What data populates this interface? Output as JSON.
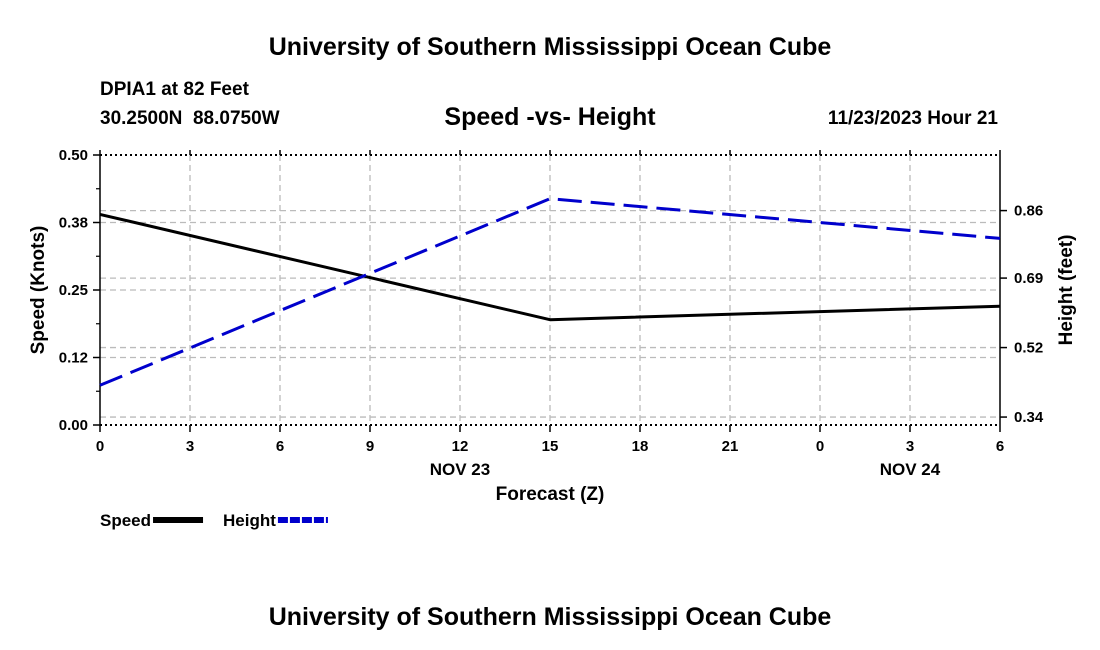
{
  "page_title": "University of Southern Mississippi Ocean Cube",
  "footer_title": "University of Southern Mississippi Ocean Cube",
  "station": {
    "name_line": "DPIA1 at 82 Feet",
    "coords_line": "30.2500N  88.0750W"
  },
  "timestamp": "11/23/2023 Hour 21",
  "chart_data": {
    "type": "line",
    "title": "Speed -vs- Height",
    "xlabel": "Forecast (Z)",
    "ylabel": "Speed (Knots)",
    "y2label": "Height (feet)",
    "x": [
      0,
      3,
      6,
      9,
      12,
      15,
      18,
      21,
      24,
      27,
      30
    ],
    "x_tick_labels": [
      "0",
      "3",
      "6",
      "9",
      "12",
      "15",
      "18",
      "21",
      "0",
      "3",
      "6"
    ],
    "x_date_labels": [
      {
        "label": "NOV 23",
        "at_x": 12
      },
      {
        "label": "NOV 24",
        "at_x": 27
      }
    ],
    "ylim": [
      0.0,
      0.5
    ],
    "y_ticks": [
      0.0,
      0.125,
      0.25,
      0.375,
      0.5
    ],
    "y_tick_labels": [
      "0.00",
      "0.12",
      "0.25",
      "0.38",
      "0.50"
    ],
    "y2lim": [
      0.32,
      1.0
    ],
    "y2_ticks": [
      0.34,
      0.515,
      0.69,
      0.86
    ],
    "y2_tick_labels": [
      "0.34",
      "0.52",
      "0.69",
      "0.86"
    ],
    "grid": true,
    "series": [
      {
        "name": "Speed",
        "axis": "left",
        "color": "#000000",
        "style": "solid",
        "x": [
          0,
          15,
          30
        ],
        "values": [
          0.39,
          0.195,
          0.22
        ]
      },
      {
        "name": "Height",
        "axis": "right",
        "color": "#0000cc",
        "style": "dashed",
        "x": [
          0,
          15,
          30
        ],
        "values": [
          0.42,
          0.89,
          0.79
        ]
      }
    ],
    "legend": [
      {
        "label": "Speed",
        "color": "#000000",
        "style": "solid"
      },
      {
        "label": "Height",
        "color": "#0000cc",
        "style": "dashed"
      }
    ]
  }
}
